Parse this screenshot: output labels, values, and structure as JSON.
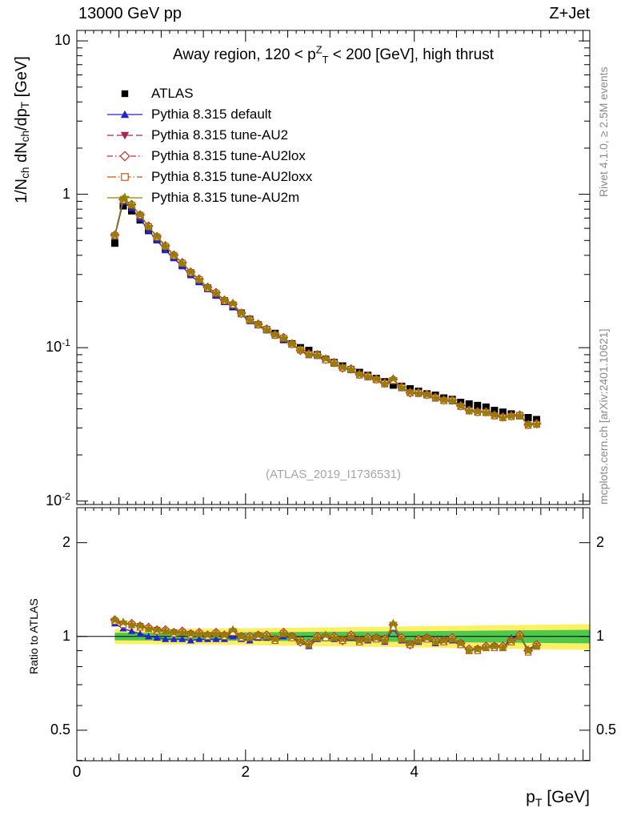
{
  "header": {
    "left": "13000 GeV pp",
    "right": "Z+Jet"
  },
  "plot": {
    "title": "Away region, 120 < p^{Z}_{T} < 200 [GeV], high thrust",
    "watermark": "(ATLAS_2019_I1736531)",
    "ylabel": "1/N_{ch} dN_{ch}/dp_{T} [GeV]",
    "xlabel": "p_{T} [GeV]",
    "ratio_label": "Ratio to ATLAS",
    "right_caption_top": "Rivet 4.1.0, ≥ 2.5M events",
    "right_caption_bottom": "mcplots.cern.ch [arXiv:2401.10621]"
  },
  "chart_data": {
    "type": "line",
    "title": "Away region, 120 < pT(Z) < 200 [GeV], high thrust",
    "xlabel": "p_T [GeV]",
    "ylabel": "1/N_ch dN_ch/dp_T [GeV]",
    "axes": {
      "x": {
        "min": 0,
        "max": 6.08,
        "major": [
          0,
          2,
          4
        ],
        "labels": [
          "0",
          "2",
          "4"
        ]
      },
      "y_main": {
        "scale": "log",
        "min": 0.0095,
        "max": 11.7,
        "ticks": [
          {
            "v": 10,
            "l": "10"
          },
          {
            "v": 1,
            "l": "1"
          },
          {
            "v": 0.1,
            "l": "10^{-1}"
          },
          {
            "v": 0.01,
            "l": "10^{-2}"
          }
        ]
      },
      "y_ratio": {
        "scale": "log",
        "min": 0.399,
        "max": 2.59,
        "ticks": [
          {
            "v": 2,
            "l": "2"
          },
          {
            "v": 1,
            "l": "1"
          },
          {
            "v": 0.5,
            "l": "0.5"
          }
        ],
        "minor": [
          0.4,
          0.6,
          0.7,
          0.8,
          0.9
        ]
      }
    },
    "x": [
      0.45,
      0.55,
      0.65,
      0.75,
      0.85,
      0.95,
      1.05,
      1.15,
      1.25,
      1.35,
      1.45,
      1.55,
      1.65,
      1.75,
      1.85,
      1.95,
      2.05,
      2.15,
      2.25,
      2.35,
      2.45,
      2.55,
      2.65,
      2.75,
      2.85,
      2.95,
      3.05,
      3.15,
      3.25,
      3.35,
      3.45,
      3.55,
      3.65,
      3.75,
      3.85,
      3.95,
      4.05,
      4.15,
      4.25,
      4.35,
      4.45,
      4.55,
      4.65,
      4.75,
      4.85,
      4.95,
      5.05,
      5.15,
      5.25,
      5.35,
      5.45
    ],
    "series": [
      {
        "name": "ATLAS",
        "marker": "square-filled",
        "color": "#000000",
        "line": "none",
        "values": [
          0.48,
          0.84,
          0.78,
          0.68,
          0.58,
          0.505,
          0.44,
          0.39,
          0.345,
          0.305,
          0.272,
          0.245,
          0.222,
          0.202,
          0.185,
          0.168,
          0.153,
          0.141,
          0.131,
          0.124,
          0.113,
          0.106,
          0.1,
          0.096,
          0.09,
          0.084,
          0.08,
          0.076,
          0.072,
          0.069,
          0.066,
          0.063,
          0.06,
          0.057,
          0.056,
          0.054,
          0.052,
          0.05,
          0.049,
          0.047,
          0.046,
          0.044,
          0.043,
          0.042,
          0.041,
          0.039,
          0.038,
          0.037,
          0.036,
          0.035,
          0.034
        ]
      },
      {
        "name": "Pythia 8.315 default",
        "marker": "triangle-up",
        "color": "#2323d2",
        "line": "solid",
        "ratio_to_atlas": [
          1.1,
          1.06,
          1.04,
          1.02,
          1.0,
          0.99,
          0.98,
          0.98,
          0.98,
          0.97,
          0.98,
          0.98,
          0.98,
          0.98,
          1.0,
          0.98,
          0.97,
          0.99,
          0.99,
          0.97,
          1.0,
          0.99,
          0.96,
          0.93,
          0.98,
          0.99,
          0.98,
          0.97,
          0.99,
          0.96,
          0.97,
          0.98,
          0.96,
          1.06,
          0.97,
          0.94,
          0.96,
          0.98,
          0.95,
          0.96,
          0.97,
          0.94,
          0.9,
          0.91,
          0.92,
          0.93,
          0.92,
          0.99,
          1.0,
          0.91,
          0.94
        ]
      },
      {
        "name": "Pythia 8.315 tune-AU2",
        "marker": "triangle-down",
        "color": "#aa2550",
        "line": "dash",
        "ratio_to_atlas": [
          1.12,
          1.1,
          1.09,
          1.08,
          1.06,
          1.05,
          1.04,
          1.03,
          1.03,
          1.02,
          1.02,
          1.01,
          1.02,
          1.01,
          1.03,
          1.0,
          0.99,
          1.01,
          1.0,
          0.98,
          1.02,
          1.0,
          0.97,
          0.94,
          0.99,
          1.0,
          0.99,
          0.98,
          1.0,
          0.97,
          0.98,
          0.99,
          0.97,
          1.08,
          0.98,
          0.95,
          0.97,
          0.99,
          0.96,
          0.97,
          0.98,
          0.95,
          0.9,
          0.91,
          0.92,
          0.93,
          0.92,
          0.97,
          1.0,
          0.9,
          0.93
        ]
      },
      {
        "name": "Pythia 8.315 tune-AU2lox",
        "marker": "diamond-open",
        "color": "#cc2a2a",
        "line": "dashdot",
        "ratio_to_atlas": [
          1.13,
          1.1,
          1.1,
          1.08,
          1.07,
          1.05,
          1.05,
          1.03,
          1.04,
          1.02,
          1.03,
          1.01,
          1.03,
          1.01,
          1.04,
          1.0,
          1.0,
          1.01,
          1.01,
          0.98,
          1.03,
          1.0,
          0.96,
          0.95,
          1.0,
          1.0,
          1.0,
          0.97,
          1.01,
          0.97,
          0.99,
          0.99,
          0.98,
          1.09,
          0.99,
          0.94,
          0.98,
          0.99,
          0.97,
          0.97,
          0.99,
          0.95,
          0.91,
          0.91,
          0.93,
          0.93,
          0.93,
          0.97,
          1.01,
          0.9,
          0.94
        ]
      },
      {
        "name": "Pythia 8.315 tune-AU2loxx",
        "marker": "square-open",
        "color": "#c05a10",
        "line": "longdashdot",
        "ratio_to_atlas": [
          1.12,
          1.09,
          1.09,
          1.07,
          1.06,
          1.04,
          1.04,
          1.02,
          1.03,
          1.01,
          1.02,
          1.0,
          1.02,
          1.0,
          1.03,
          0.99,
          0.99,
          1.0,
          1.0,
          0.97,
          1.02,
          0.99,
          0.97,
          0.94,
          0.99,
          0.99,
          0.99,
          0.97,
          1.0,
          0.96,
          0.98,
          0.98,
          0.97,
          1.07,
          0.98,
          0.94,
          0.97,
          0.98,
          0.96,
          0.96,
          0.98,
          0.94,
          0.9,
          0.9,
          0.92,
          0.92,
          0.92,
          0.96,
          1.0,
          0.89,
          0.93
        ]
      },
      {
        "name": "Pythia 8.315 tune-AU2m",
        "marker": "star",
        "color": "#8f8000",
        "line": "solid",
        "ratio_to_atlas": [
          1.13,
          1.11,
          1.09,
          1.08,
          1.06,
          1.05,
          1.04,
          1.03,
          1.03,
          1.02,
          1.02,
          1.01,
          1.02,
          1.01,
          1.05,
          1.0,
          0.99,
          1.01,
          1.0,
          0.98,
          1.02,
          1.0,
          0.97,
          0.94,
          0.99,
          1.01,
          0.99,
          0.98,
          1.0,
          0.97,
          0.98,
          0.99,
          0.97,
          1.1,
          0.98,
          0.95,
          0.97,
          0.99,
          0.96,
          0.97,
          0.98,
          0.95,
          0.9,
          0.91,
          0.92,
          0.93,
          0.92,
          0.97,
          1.0,
          0.9,
          0.93
        ]
      }
    ],
    "ratio_bands": {
      "x": [
        0.45,
        2.0,
        4.0,
        6.08
      ],
      "yellow_halfwidth": [
        0.055,
        0.062,
        0.078,
        0.095
      ],
      "green_halfwidth": [
        0.028,
        0.031,
        0.04,
        0.05
      ],
      "yellow_color": "#ffef62",
      "green_color": "#4ec94e"
    },
    "legend_position": "top-left",
    "grid": false
  }
}
